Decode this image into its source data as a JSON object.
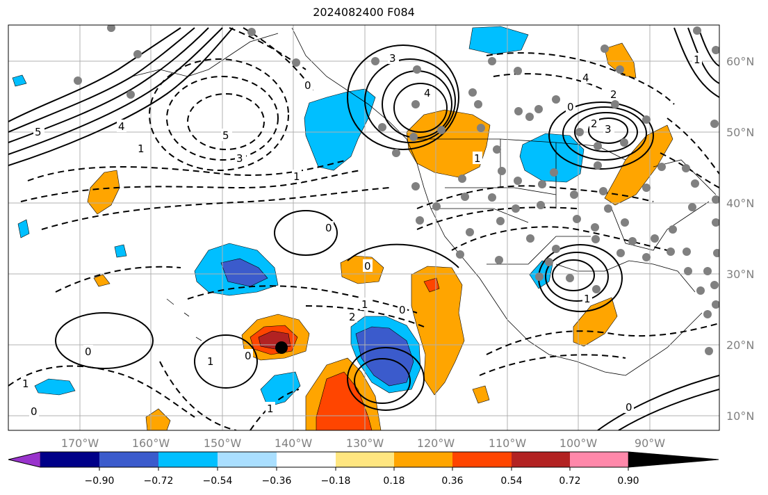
{
  "title": "2024082400 F084",
  "axes": {
    "lon_ticks": [
      "170°W",
      "160°W",
      "150°W",
      "140°W",
      "130°W",
      "120°W",
      "110°W",
      "100°W",
      "90°W"
    ],
    "lat_ticks": [
      "60°N",
      "50°N",
      "40°N",
      "30°N",
      "20°N",
      "10°N"
    ]
  },
  "colorbar": {
    "levels": [
      "−0.90",
      "−0.72",
      "−0.54",
      "−0.36",
      "−0.18",
      "0.18",
      "0.36",
      "0.54",
      "0.72",
      "0.90"
    ],
    "colors": [
      "#9933cc",
      "#000088",
      "#3b5bcc",
      "#00bfff",
      "#aadfff",
      "#ffffff",
      "#ffe680",
      "#ffa500",
      "#ff4500",
      "#b22222",
      "#ff88aa"
    ]
  },
  "contour_labels": [
    "5",
    "4",
    "3",
    "1",
    "0",
    "1",
    "0",
    "3",
    "4",
    "5",
    "0",
    "2",
    "0",
    "1",
    "2",
    "0",
    "1",
    "0",
    "1",
    "0",
    "1",
    "0",
    "3",
    "2",
    "0",
    "1",
    "4",
    "1",
    "1"
  ]
}
